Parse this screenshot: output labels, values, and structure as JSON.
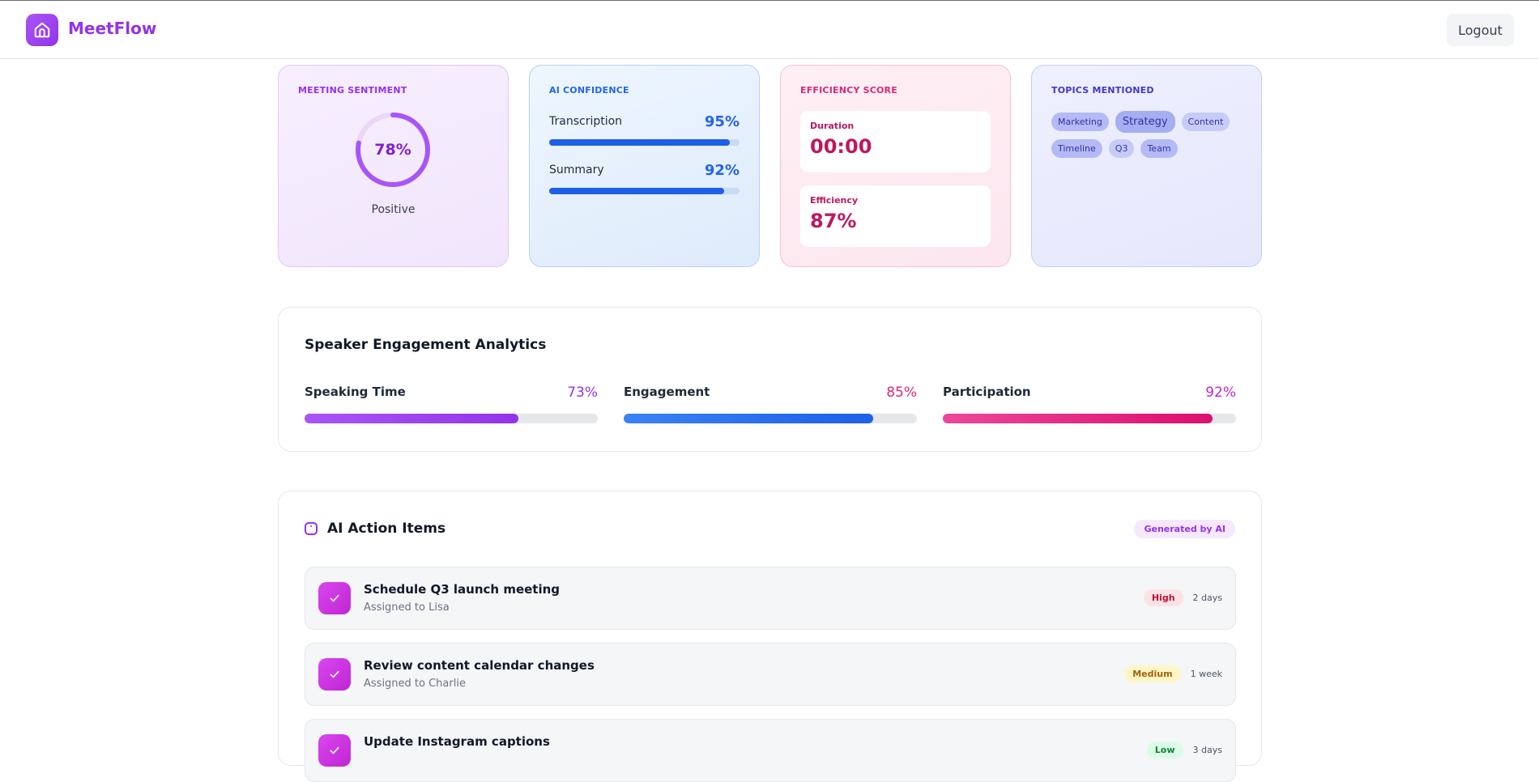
{
  "header": {
    "brand": "MeetFlow",
    "logout_label": "Logout"
  },
  "sentiment": {
    "label": "MEETING SENTIMENT",
    "value_text": "78%",
    "value": 0.78,
    "caption": "Positive"
  },
  "confidence": {
    "label": "AI CONFIDENCE",
    "rows": [
      {
        "label": "Transcription",
        "value_text": "95%",
        "value": 0.95
      },
      {
        "label": "Summary",
        "value_text": "92%",
        "value": 0.92
      }
    ]
  },
  "efficiency": {
    "label": "EFFICIENCY SCORE",
    "duration_label": "Duration",
    "duration_value": "00:00",
    "efficiency_label": "Efficiency",
    "efficiency_value": "87%"
  },
  "topics": {
    "label": "TOPICS MENTIONED",
    "tags": [
      "Marketing",
      "Strategy",
      "Content",
      "Timeline",
      "Q3",
      "Team"
    ]
  },
  "engagement": {
    "title": "Speaker Engagement Analytics",
    "metrics": [
      {
        "label": "Speaking Time",
        "value_text": "73%",
        "value": 0.73,
        "color": "#9333ea"
      },
      {
        "label": "Engagement",
        "value_text": "85%",
        "value": 0.85,
        "color": "#2563eb"
      },
      {
        "label": "Participation",
        "value_text": "92%",
        "value": 0.92,
        "color": "#db2777"
      }
    ]
  },
  "actions": {
    "title": "AI Action Items",
    "badge": "Generated by AI",
    "items": [
      {
        "title": "Schedule Q3 launch meeting",
        "assignee": "Assigned to Lisa",
        "priority": "High",
        "due": "2 days"
      },
      {
        "title": "Review content calendar changes",
        "assignee": "Assigned to Charlie",
        "priority": "Medium",
        "due": "1 week"
      },
      {
        "title": "Update Instagram captions",
        "assignee": "",
        "priority": "Low",
        "due": "3 days"
      }
    ]
  }
}
